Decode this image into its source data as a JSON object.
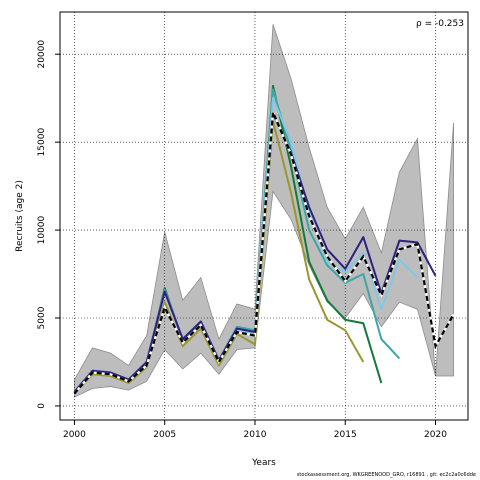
{
  "chart_data": {
    "type": "line",
    "xlabel": "Years",
    "ylabel": "Recruits (age 2)",
    "annotation": "ρ = -0.253",
    "xlim": [
      1999.2,
      2021.8
    ],
    "ylim": [
      -800,
      22400
    ],
    "x_ticks": [
      2000,
      2005,
      2010,
      2015,
      2020
    ],
    "y_ticks": [
      0,
      5000,
      10000,
      15000,
      20000
    ],
    "grid": true,
    "band": {
      "x": [
        2000,
        2001,
        2002,
        2003,
        2004,
        2005,
        2006,
        2007,
        2008,
        2009,
        2010,
        2011,
        2012,
        2013,
        2014,
        2015,
        2016,
        2017,
        2018,
        2019,
        2020,
        2021
      ],
      "upper": [
        1500,
        3300,
        3000,
        2300,
        4000,
        9900,
        6000,
        7300,
        3800,
        5800,
        5500,
        21700,
        18600,
        14700,
        11300,
        9500,
        11300,
        8700,
        13300,
        15200,
        1700,
        16100
      ],
      "lower": [
        500,
        1000,
        1100,
        900,
        1400,
        3200,
        2100,
        3000,
        1800,
        3200,
        3300,
        12200,
        10600,
        8000,
        5900,
        5000,
        6400,
        4500,
        5900,
        5500,
        1700,
        1700
      ]
    },
    "series": [
      {
        "color": "#9a9630",
        "x": [
          2000,
          2001,
          2002,
          2003,
          2004,
          2005,
          2006,
          2007,
          2008,
          2009,
          2010,
          2011,
          2012,
          2013,
          2014,
          2015,
          2016
        ],
        "values": [
          700,
          1800,
          1700,
          1300,
          2200,
          5900,
          3400,
          4400,
          2300,
          4100,
          3500,
          16200,
          12100,
          7200,
          4900,
          4300,
          2500
        ]
      },
      {
        "color": "#127a3a",
        "x": [
          2000,
          2001,
          2002,
          2003,
          2004,
          2005,
          2006,
          2007,
          2008,
          2009,
          2010,
          2011,
          2012,
          2013,
          2014,
          2015,
          2016,
          2017
        ],
        "values": [
          750,
          1950,
          1850,
          1450,
          2400,
          6700,
          3700,
          4800,
          2500,
          4400,
          4200,
          18200,
          13600,
          8200,
          6000,
          4900,
          4700,
          1300
        ]
      },
      {
        "color": "#3aa8a4",
        "x": [
          2000,
          2001,
          2002,
          2003,
          2004,
          2005,
          2006,
          2007,
          2008,
          2009,
          2010,
          2011,
          2012,
          2013,
          2014,
          2015,
          2016,
          2017,
          2018
        ],
        "values": [
          800,
          2000,
          1900,
          1500,
          2500,
          6600,
          3800,
          4800,
          2600,
          4500,
          4300,
          18000,
          14500,
          10000,
          8000,
          7000,
          7500,
          3800,
          2700
        ]
      },
      {
        "color": "#80c8e8",
        "x": [
          2000,
          2001,
          2002,
          2003,
          2004,
          2005,
          2006,
          2007,
          2008,
          2009,
          2010,
          2011,
          2012,
          2013,
          2014,
          2015,
          2016,
          2017,
          2018,
          2019
        ],
        "values": [
          800,
          2000,
          1900,
          1500,
          2500,
          6500,
          3800,
          4800,
          2600,
          4400,
          4100,
          17500,
          15000,
          11000,
          8200,
          7600,
          8700,
          5500,
          8300,
          7300
        ]
      },
      {
        "color": "#2e2080",
        "x": [
          2000,
          2001,
          2002,
          2003,
          2004,
          2005,
          2006,
          2007,
          2008,
          2009,
          2010,
          2011,
          2012,
          2013,
          2014,
          2015,
          2016,
          2017,
          2018,
          2019,
          2020
        ],
        "values": [
          800,
          2000,
          1900,
          1500,
          2500,
          6500,
          3800,
          4800,
          2600,
          4400,
          4200,
          16600,
          14400,
          11300,
          8900,
          7800,
          9600,
          6400,
          9400,
          9300,
          7400
        ]
      },
      {
        "color": "#000000",
        "dashed": true,
        "x": [
          2000,
          2001,
          2002,
          2003,
          2004,
          2005,
          2006,
          2007,
          2008,
          2009,
          2010,
          2011,
          2012,
          2013,
          2014,
          2015,
          2016,
          2017,
          2018,
          2019,
          2020,
          2021
        ],
        "values": [
          700,
          1900,
          1800,
          1400,
          2300,
          5600,
          3600,
          4600,
          2500,
          4200,
          4000,
          16700,
          14300,
          10800,
          8500,
          7100,
          8500,
          6300,
          8900,
          9200,
          3400,
          5200
        ]
      }
    ]
  },
  "footer": "stockassessment.org, WKGREENOOD_GRO, r16891 , git: ec2c2a0c6dde"
}
